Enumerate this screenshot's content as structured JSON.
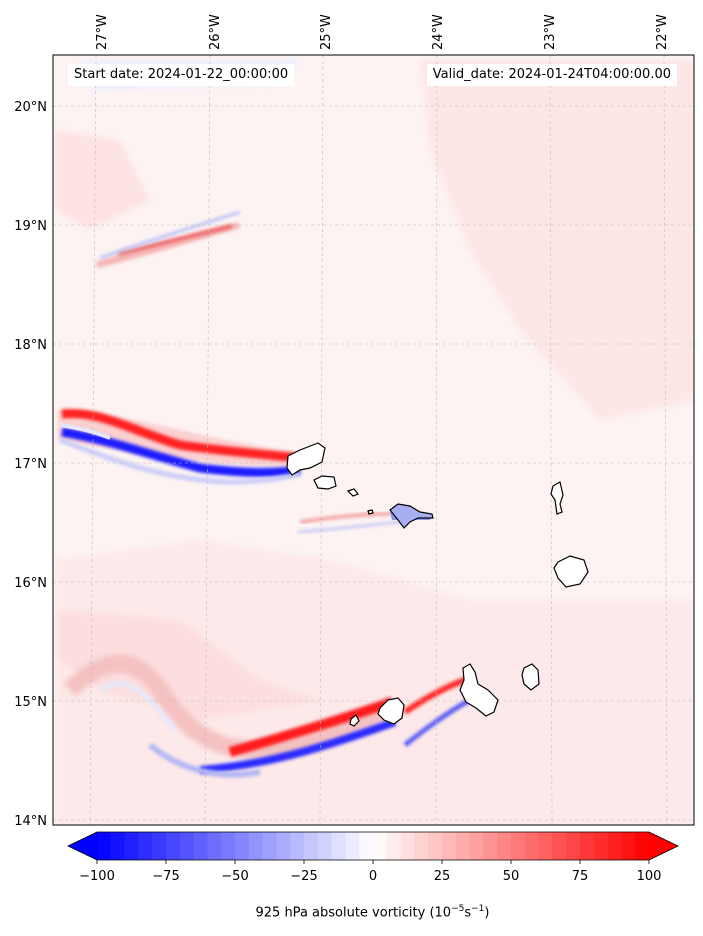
{
  "map": {
    "start_date_label": "Start date: 2024-01-22_00:00:00",
    "valid_date_label": "Valid_date: 2024-01-24T04:00:00.00",
    "lon_ticks": [
      "27°W",
      "26°W",
      "25°W",
      "24°W",
      "23°W",
      "22°W"
    ],
    "lat_ticks": [
      "20°N",
      "19°N",
      "18°N",
      "17°N",
      "16°N",
      "15°N",
      "14°N"
    ],
    "gridlines": true,
    "coastline_color": "#000000"
  },
  "colorbar": {
    "label_prefix": "925 hPa absolute vorticity (10",
    "label_exp1": "−5",
    "label_mid": "s",
    "label_exp2": "−1",
    "label_suffix": ")",
    "ticks": [
      "−100",
      "−75",
      "−50",
      "−25",
      "0",
      "25",
      "50",
      "75",
      "100"
    ],
    "colormap": "bwr",
    "vmin": -100,
    "vmax": 100,
    "min_color": "#0000ff",
    "mid_color": "#ffffff",
    "max_color": "#ff0000",
    "extend": "both"
  }
}
